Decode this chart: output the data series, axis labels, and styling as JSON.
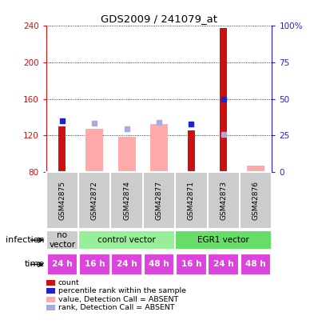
{
  "title": "GDS2009 / 241079_at",
  "samples": [
    "GSM42875",
    "GSM42872",
    "GSM42874",
    "GSM42877",
    "GSM42871",
    "GSM42873",
    "GSM42876"
  ],
  "count_values": [
    130,
    null,
    null,
    null,
    125,
    238,
    null
  ],
  "rank_values": [
    136,
    null,
    null,
    null,
    132,
    160,
    null
  ],
  "absent_value_values": [
    null,
    127,
    118,
    132,
    null,
    null,
    87
  ],
  "absent_rank_values": [
    null,
    133,
    127,
    134,
    null,
    121,
    null
  ],
  "ylim_left": [
    80,
    240
  ],
  "ylim_right": [
    0,
    100
  ],
  "yticks_left": [
    80,
    120,
    160,
    200,
    240
  ],
  "yticks_right": [
    0,
    25,
    50,
    75,
    100
  ],
  "infection_groups": [
    {
      "label": "no\nvector",
      "start": 0,
      "end": 1,
      "color": "#cccccc"
    },
    {
      "label": "control vector",
      "start": 1,
      "end": 4,
      "color": "#99ee99"
    },
    {
      "label": "EGR1 vector",
      "start": 4,
      "end": 7,
      "color": "#66dd66"
    }
  ],
  "time_labels": [
    "24 h",
    "16 h",
    "24 h",
    "48 h",
    "16 h",
    "24 h",
    "48 h"
  ],
  "time_color": "#dd44dd",
  "count_color": "#cc1111",
  "rank_color": "#2222cc",
  "absent_value_color": "#ffaaaa",
  "absent_rank_color": "#aaaadd",
  "bg_color": "#ffffff",
  "sample_bg": "#cccccc"
}
